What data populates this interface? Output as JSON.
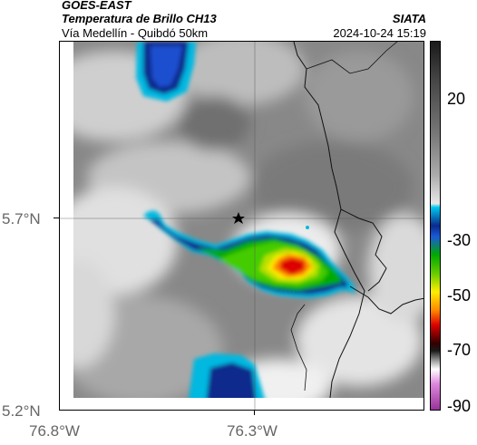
{
  "header": {
    "satellite": "GOES-EAST",
    "product": "Temperatura de Brillo CH13",
    "region": "Vía Medellín - Quibdó 50km",
    "agency": "SIATA",
    "timestamp": "2024-10-24 15:19"
  },
  "axes": {
    "lat_ticks": [
      "5.7°N",
      "5.2°N"
    ],
    "lon_ticks": [
      "76.8°W",
      "76.3°W"
    ]
  },
  "colorbar": {
    "ticks": [
      "20",
      "-30",
      "-50",
      "-70",
      "-90"
    ],
    "unit": "",
    "colors": [
      "#222222",
      "#777777",
      "#d0d0d0",
      "#00b8e0",
      "#0a2a8c",
      "#00aa00",
      "#b8e000",
      "#ffee00",
      "#ff8800",
      "#dd0000",
      "#330000",
      "#aaaaaa",
      "#dd88dd",
      "#993399"
    ]
  },
  "map": {
    "marker": "star",
    "marker_meaning": "location",
    "features": [
      "cloud-top brightness temperature field",
      "country/department borders"
    ]
  }
}
